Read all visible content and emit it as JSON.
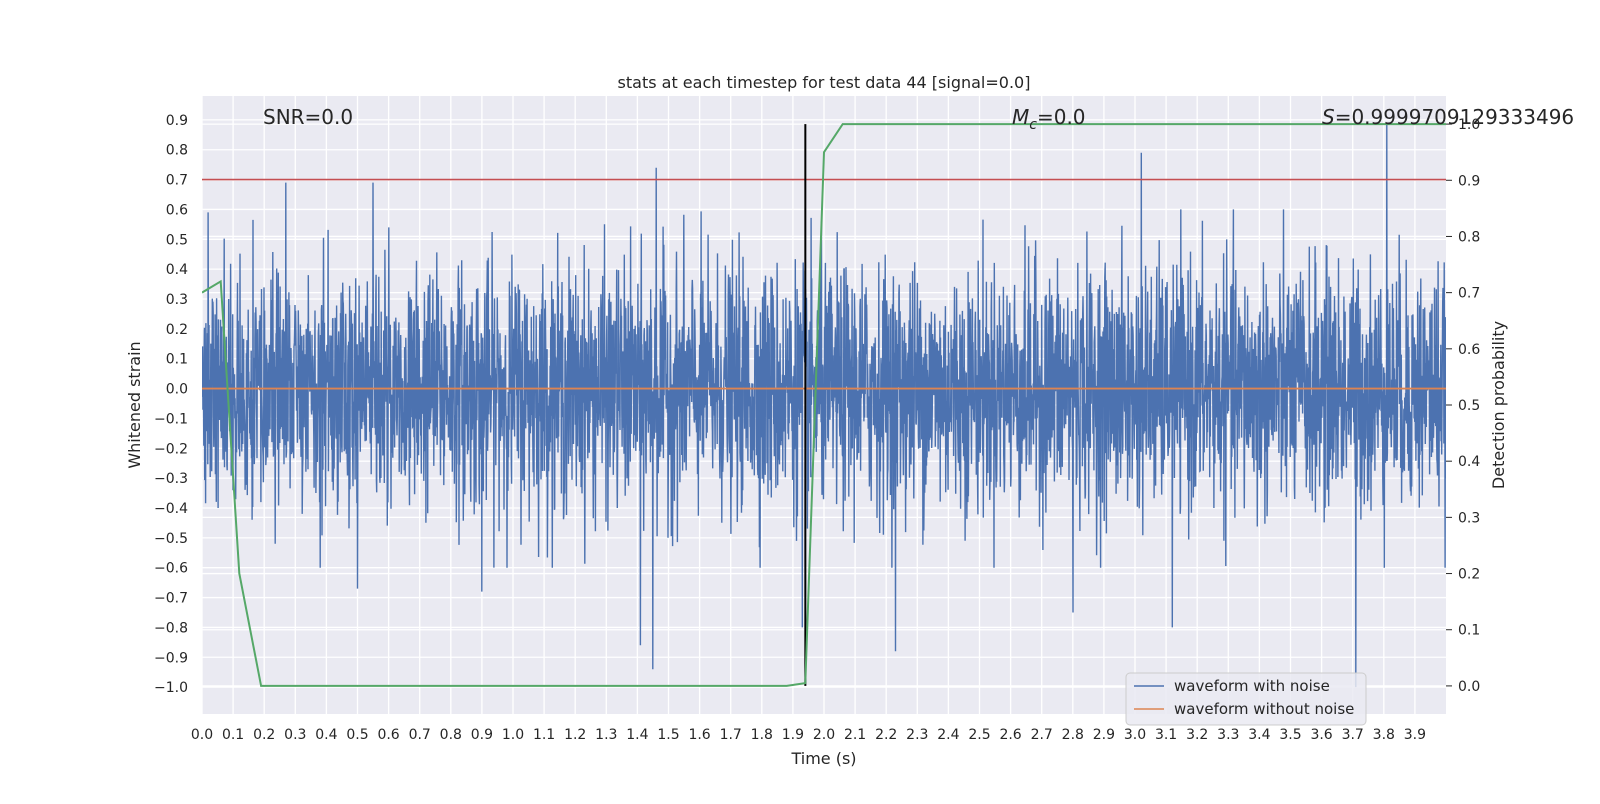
{
  "chart_data": {
    "type": "line",
    "title": "stats at each timestep for test data 44 [signal=0.0]",
    "xlabel": "Time (s)",
    "ylabel_left": "Whitened strain",
    "ylabel_right": "Detection probability",
    "xlim": [
      0.0,
      4.0
    ],
    "ylim_left": [
      -1.09,
      0.98
    ],
    "ylim_right": [
      -0.05,
      1.05
    ],
    "x_ticks": [
      "0.0",
      "0.1",
      "0.2",
      "0.3",
      "0.4",
      "0.5",
      "0.6",
      "0.7",
      "0.8",
      "0.9",
      "1.0",
      "1.1",
      "1.2",
      "1.3",
      "1.4",
      "1.5",
      "1.6",
      "1.7",
      "1.8",
      "1.9",
      "2.0",
      "2.1",
      "2.2",
      "2.3",
      "2.4",
      "2.5",
      "2.6",
      "2.7",
      "2.8",
      "2.9",
      "3.0",
      "3.1",
      "3.2",
      "3.3",
      "3.4",
      "3.5",
      "3.6",
      "3.7",
      "3.8",
      "3.9"
    ],
    "y_left_ticks": [
      "0.9",
      "0.8",
      "0.7",
      "0.6",
      "0.5",
      "0.4",
      "0.3",
      "0.2",
      "0.1",
      "0.0",
      "−0.1",
      "−0.2",
      "−0.3",
      "−0.4",
      "−0.5",
      "−0.6",
      "−0.7",
      "−0.8",
      "−0.9",
      "−1.0"
    ],
    "y_right_ticks": [
      "1.0",
      "0.9",
      "0.8",
      "0.7",
      "0.6",
      "0.5",
      "0.4",
      "0.3",
      "0.2",
      "0.1",
      "0.0"
    ],
    "annotations": {
      "snr": "SNR=0.0",
      "mc_symbol": "M",
      "mc_sub": "c",
      "mc_value": "=0.0",
      "s_symbol": "S",
      "s_value": "=0.9999709129333496"
    },
    "threshold_line": {
      "value": 0.7,
      "axis": "left",
      "color": "#c44e52"
    },
    "detection_marker": {
      "x": 1.94,
      "color": "#000000"
    },
    "series": [
      {
        "name": "waveform with noise",
        "color": "#4c72b0",
        "x_start": 0.0,
        "x_end": 4.0,
        "noise_std": 0.2,
        "seed": 44,
        "extremes": [
          {
            "x": 0.02,
            "y": 0.59
          },
          {
            "x": 0.27,
            "y": 0.69
          },
          {
            "x": 0.5,
            "y": -0.67
          },
          {
            "x": 0.55,
            "y": 0.69
          },
          {
            "x": 0.9,
            "y": -0.68
          },
          {
            "x": 1.41,
            "y": -0.86
          },
          {
            "x": 1.45,
            "y": -0.94
          },
          {
            "x": 1.46,
            "y": 0.74
          },
          {
            "x": 1.93,
            "y": -0.8
          },
          {
            "x": 2.23,
            "y": -0.88
          },
          {
            "x": 3.02,
            "y": 0.79
          },
          {
            "x": 3.12,
            "y": -0.8
          },
          {
            "x": 3.71,
            "y": -1.0
          },
          {
            "x": 3.81,
            "y": 0.89
          },
          {
            "x": 2.8,
            "y": -0.75
          }
        ]
      },
      {
        "name": "waveform without noise",
        "color": "#dd8452",
        "x": [
          0.0,
          4.0
        ],
        "y": [
          0.0,
          0.0
        ]
      },
      {
        "name": "detection probability",
        "color": "#55a868",
        "axis": "right",
        "x": [
          0.0,
          0.06,
          0.12,
          0.19,
          0.25,
          0.31,
          0.5,
          1.0,
          1.5,
          1.88,
          1.94,
          2.0,
          2.06,
          2.2,
          3.0,
          4.0
        ],
        "y": [
          0.7,
          0.72,
          0.2,
          0.0,
          0.0,
          0.0,
          0.0,
          0.0,
          0.0,
          0.0,
          0.005,
          0.95,
          1.0,
          1.0,
          1.0,
          1.0
        ]
      }
    ],
    "legend": {
      "position": "bottom-right",
      "entries": [
        {
          "label": "waveform with noise",
          "color": "#4c72b0"
        },
        {
          "label": "waveform without noise",
          "color": "#dd8452"
        }
      ]
    },
    "grid": true,
    "background": "#eaeaf2"
  }
}
